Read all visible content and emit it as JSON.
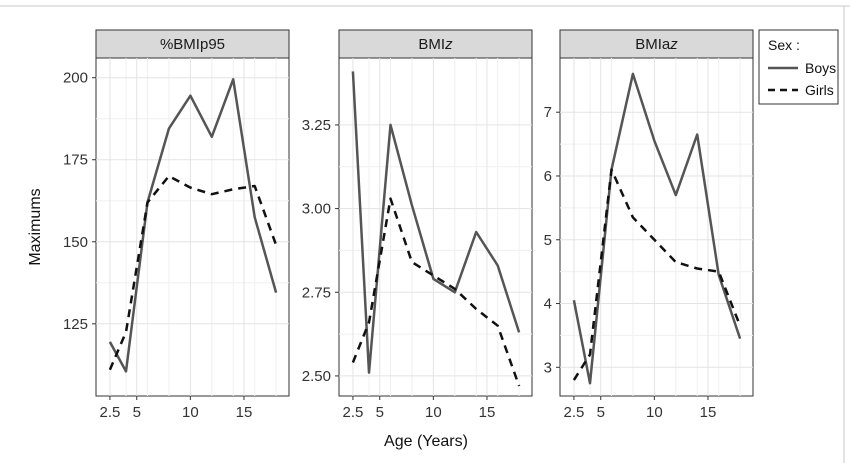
{
  "chart_data": {
    "type": "line",
    "facets": [
      {
        "strip": "%BMIp95",
        "ylim": [
          103,
          206
        ],
        "yticks": [
          125,
          150,
          175,
          200
        ],
        "ytick_labels": [
          "125",
          "150",
          "175",
          "200"
        ],
        "series": [
          {
            "name": "Boys",
            "x": [
              2.5,
              4,
              6,
              8,
              10,
              12,
              14,
              16,
              18
            ],
            "values": [
              119.5,
              110.5,
              162,
              184.5,
              194.5,
              182,
              199.5,
              157.5,
              134.5
            ]
          },
          {
            "name": "Girls",
            "x": [
              2.5,
              4,
              6,
              8,
              10,
              12,
              14,
              16,
              18
            ],
            "values": [
              111,
              122.5,
              162,
              170,
              166.5,
              164.5,
              166,
              167,
              149
            ]
          }
        ]
      },
      {
        "strip": "BMI",
        "strip_italic": "z",
        "ylim": [
          2.44,
          3.45
        ],
        "yticks": [
          2.5,
          2.75,
          3.0,
          3.25
        ],
        "ytick_labels": [
          "2.50",
          "2.75",
          "3.00",
          "3.25"
        ],
        "series": [
          {
            "name": "Boys",
            "x": [
              2.5,
              4,
              6,
              8,
              10,
              12,
              14,
              16,
              18
            ],
            "values": [
              3.41,
              2.51,
              3.25,
              3.01,
              2.79,
              2.75,
              2.93,
              2.83,
              2.63
            ]
          },
          {
            "name": "Girls",
            "x": [
              2.5,
              4,
              6,
              8,
              10,
              12,
              14,
              16,
              18
            ],
            "values": [
              2.54,
              2.66,
              3.03,
              2.84,
              2.8,
              2.76,
              2.7,
              2.65,
              2.47
            ]
          }
        ]
      },
      {
        "strip": "BMIa",
        "strip_italic": "z",
        "ylim": [
          2.55,
          7.85
        ],
        "yticks": [
          3,
          4,
          5,
          6,
          7
        ],
        "ytick_labels": [
          "3",
          "4",
          "5",
          "6",
          "7"
        ],
        "series": [
          {
            "name": "Boys",
            "x": [
              2.5,
              4,
              6,
              8,
              10,
              12,
              14,
              16,
              18
            ],
            "values": [
              4.05,
              2.75,
              6.1,
              7.6,
              6.55,
              5.7,
              6.65,
              4.45,
              3.45
            ]
          },
          {
            "name": "Girls",
            "x": [
              2.5,
              4,
              6,
              8,
              10,
              12,
              14,
              16,
              18
            ],
            "values": [
              2.8,
              3.2,
              6.1,
              5.35,
              5.0,
              4.65,
              4.55,
              4.5,
              3.65
            ]
          }
        ]
      }
    ],
    "xlim": [
      1.2,
      19.2
    ],
    "xticks": [
      2.5,
      5,
      10,
      15
    ],
    "xtick_labels": [
      "2.5",
      "5",
      "10",
      "15"
    ],
    "xminor": [
      4,
      6,
      8,
      12,
      14,
      16,
      18
    ],
    "xlabel": "Age (Years)",
    "ylabel": "Maximums",
    "grid": true,
    "legend": {
      "title": "Sex :",
      "placement": "right",
      "entries": [
        {
          "name": "Boys",
          "style": "solid"
        },
        {
          "name": "Girls",
          "style": "dashed"
        }
      ]
    },
    "colors": {
      "boys": "#555555",
      "girls": "#111111",
      "strip_bg": "#d9d9d9",
      "grid": "#e6e6e6"
    }
  }
}
